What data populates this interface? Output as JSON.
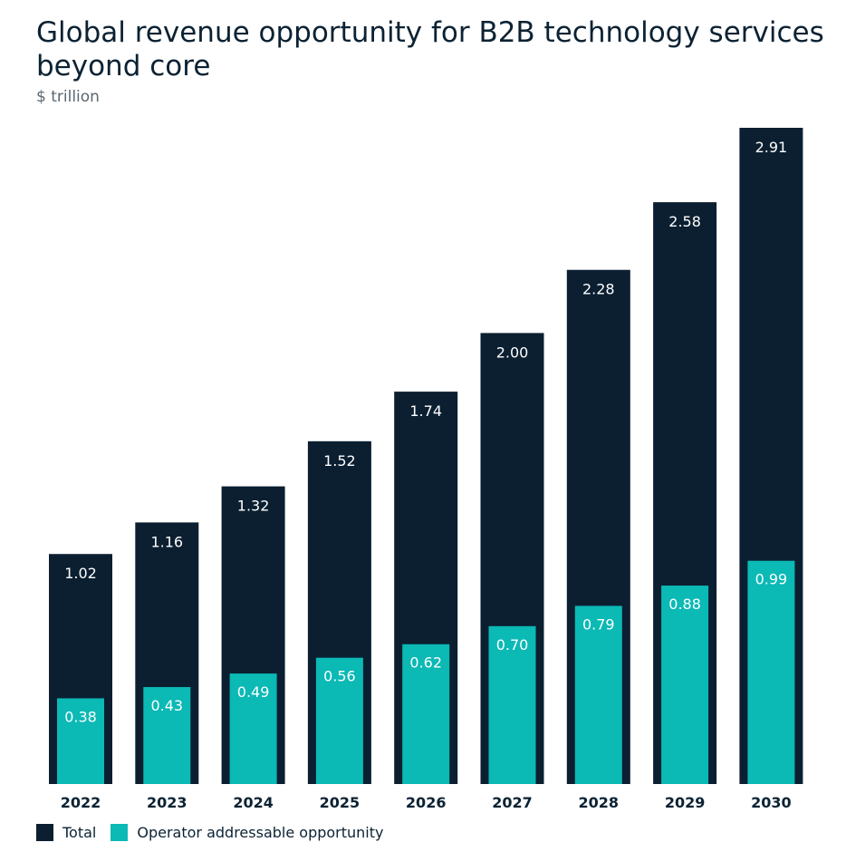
{
  "chart_data": {
    "type": "bar",
    "title": "Global revenue opportunity for B2B technology services beyond core",
    "subtitle": "$ trillion",
    "categories": [
      "2022",
      "2023",
      "2024",
      "2025",
      "2026",
      "2027",
      "2028",
      "2029",
      "2030"
    ],
    "series": [
      {
        "name": "Total",
        "values": [
          1.02,
          1.16,
          1.32,
          1.52,
          1.74,
          2.0,
          2.28,
          2.58,
          2.91
        ],
        "color": "#0b1f31"
      },
      {
        "name": "Operator addressable opportunity",
        "values": [
          0.38,
          0.43,
          0.49,
          0.56,
          0.62,
          0.7,
          0.79,
          0.88,
          0.99
        ],
        "color": "#0bb9b5"
      }
    ],
    "ylim": [
      0,
      2.91
    ],
    "grid": false,
    "legend_position": "bottom-left"
  }
}
